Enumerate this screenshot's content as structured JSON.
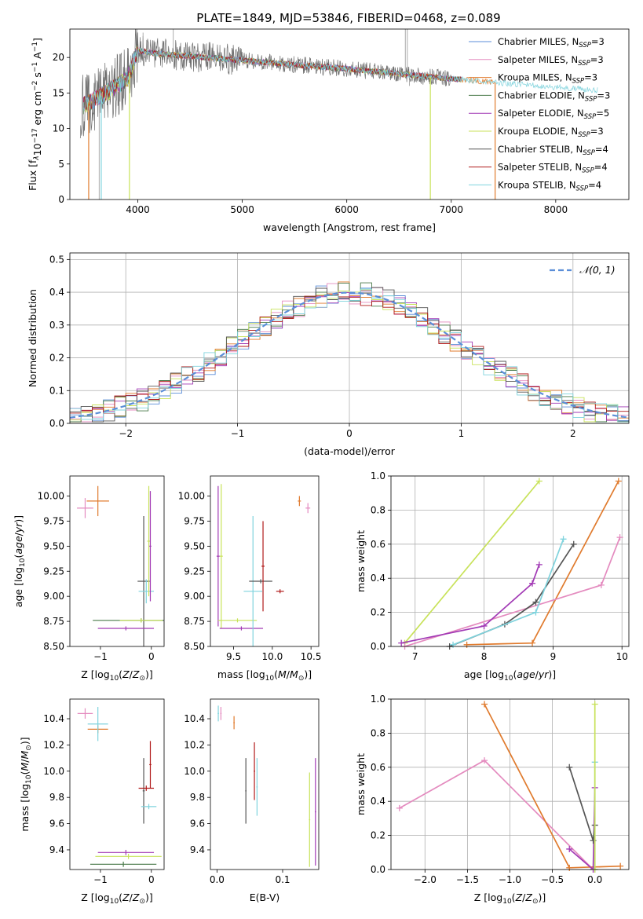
{
  "figure_title": "PLATE=1849, MJD=53846, FIBERID=0468, z=0.089",
  "chart_data": [
    {
      "id": "spectrum",
      "type": "line",
      "xlabel": "wavelength [Angstrom, rest frame]",
      "ylabel_parts": {
        "a": "Flux [f",
        "b": "λ",
        "c": "10",
        "d": "−17",
        "e": " erg cm",
        "f": "−2",
        "g": " s",
        "h": "−1",
        "i": " A",
        "j": "−1",
        "k": "]"
      },
      "xlim": [
        3350,
        8700
      ],
      "ylim": [
        0,
        24
      ],
      "xticks": [
        4000,
        5000,
        6000,
        7000,
        8000
      ],
      "yticks": [
        0,
        5,
        10,
        15,
        20
      ],
      "continuum": [
        [
          3450,
          13
        ],
        [
          3700,
          15
        ],
        [
          3900,
          17
        ],
        [
          4000,
          21
        ],
        [
          4200,
          20.5
        ],
        [
          4500,
          20.2
        ],
        [
          5000,
          19.6
        ],
        [
          5500,
          19
        ],
        [
          6000,
          18.4
        ],
        [
          6500,
          17.7
        ],
        [
          7000,
          17
        ],
        [
          7500,
          16.4
        ],
        [
          8000,
          15.8
        ],
        [
          8400,
          15.4
        ]
      ],
      "data_gray_end": 7000,
      "legend": [
        {
          "label": "Chabrier MILES, N",
          "sub": "SSP",
          "val": "=3",
          "color": "#5b8ed8"
        },
        {
          "label": "Salpeter MILES, N",
          "sub": "SSP",
          "val": "=3",
          "color": "#e48bbf"
        },
        {
          "label": "Kroupa MILES, N",
          "sub": "SSP",
          "val": "=3",
          "color": "#e07b2e"
        },
        {
          "label": "Chabrier ELODIE, N",
          "sub": "SSP",
          "val": "=3",
          "color": "#4a7a4a"
        },
        {
          "label": "Salpeter ELODIE, N",
          "sub": "SSP",
          "val": "=5",
          "color": "#a23ab5"
        },
        {
          "label": "Kroupa ELODIE, N",
          "sub": "SSP",
          "val": "=3",
          "color": "#c8e25a"
        },
        {
          "label": "Chabrier STELIB, N",
          "sub": "SSP",
          "val": "=4",
          "color": "#555555"
        },
        {
          "label": "Salpeter STELIB, N",
          "sub": "SSP",
          "val": "=4",
          "color": "#b11a1a"
        },
        {
          "label": "Kroupa STELIB, N",
          "sub": "SSP",
          "val": "=4",
          "color": "#7fd3dd"
        }
      ]
    },
    {
      "id": "residuals",
      "type": "line",
      "xlabel": "(data-model)/error",
      "ylabel": "Normed distribution",
      "xlim": [
        -2.5,
        2.5
      ],
      "ylim": [
        0,
        0.52
      ],
      "xticks": [
        -2,
        -1,
        0,
        1,
        2
      ],
      "xtick_labels": [
        "−2",
        "−1",
        "0",
        "1",
        "2"
      ],
      "yticks": [
        0.0,
        0.1,
        0.2,
        0.3,
        0.4,
        0.5
      ],
      "ytick_labels": [
        "0.0",
        "0.1",
        "0.2",
        "0.3",
        "0.4",
        "0.5"
      ],
      "bin_width": 0.1,
      "legend": {
        "label": "𝒩(0, 1)",
        "color": "#5b8ed8"
      }
    },
    {
      "id": "age-vs-Z",
      "type": "scatter",
      "xlabel": "Z [log10(Z/Z⊙)]",
      "ylabel": "age  [log10(age/yr)]",
      "xlim": [
        -1.6,
        0.25
      ],
      "ylim": [
        8.5,
        10.2
      ],
      "xticks": [
        -1,
        0
      ],
      "xtick_labels": [
        "−1",
        "0"
      ],
      "yticks": [
        8.5,
        8.75,
        9.0,
        9.25,
        9.5,
        9.75,
        10.0
      ],
      "ytick_labels": [
        "8.50",
        "8.75",
        "9.00",
        "9.25",
        "9.50",
        "9.75",
        "10.00"
      ],
      "errorbars": [
        {
          "x": -1.3,
          "y": 9.88,
          "xerr": 0.16,
          "yerr": 0.1,
          "color": "#e48bbf"
        },
        {
          "x": -1.05,
          "y": 9.95,
          "xerr": 0.22,
          "yerr": 0.15,
          "color": "#e07b2e"
        },
        {
          "x": -0.15,
          "y": 9.15,
          "xerr": 0.12,
          "yerr": 0.65,
          "color": "#555555"
        },
        {
          "x": -0.1,
          "y": 9.05,
          "xerr": 0.15,
          "yerr": 0.12,
          "color": "#7fd3dd"
        },
        {
          "x": -0.05,
          "y": 9.55,
          "xerr": 0.03,
          "yerr": 0.55,
          "color": "#c8e25a"
        },
        {
          "x": -0.2,
          "y": 8.76,
          "xerr": 0.95,
          "yerr": 0.02,
          "color": "#4a7a4a"
        },
        {
          "x": -0.2,
          "y": 8.76,
          "xerr": 0.42,
          "yerr": 0.02,
          "color": "#c8e25a"
        },
        {
          "x": -0.5,
          "y": 8.68,
          "xerr": 0.55,
          "yerr": 0.02,
          "color": "#a23ab5"
        },
        {
          "x": -0.02,
          "y": 9.5,
          "xerr": 0.02,
          "yerr": 0.55,
          "color": "#a23ab5"
        }
      ]
    },
    {
      "id": "age-vs-mass",
      "type": "scatter",
      "xlabel": "mass [log10(M/M⊙)]",
      "xlim": [
        9.2,
        10.6
      ],
      "ylim": [
        8.5,
        10.2
      ],
      "xticks": [
        9.5,
        10.0,
        10.5
      ],
      "xtick_labels": [
        "9.5",
        "10.0",
        "10.5"
      ],
      "yticks": [
        8.5,
        8.75,
        9.0,
        9.25,
        9.5,
        9.75,
        10.0
      ],
      "ytick_labels": [
        "8.50",
        "8.75",
        "9.00",
        "9.25",
        "9.50",
        "9.75",
        "10.00"
      ],
      "errorbars": [
        {
          "x": 9.3,
          "y": 9.4,
          "xerr": 0.02,
          "yerr": 0.7,
          "color": "#a23ab5"
        },
        {
          "x": 9.34,
          "y": 9.4,
          "xerr": 0.02,
          "yerr": 0.72,
          "color": "#c8e25a"
        },
        {
          "x": 9.55,
          "y": 8.76,
          "xerr": 0.25,
          "yerr": 0.02,
          "color": "#c8e25a"
        },
        {
          "x": 9.6,
          "y": 8.68,
          "xerr": 0.28,
          "yerr": 0.02,
          "color": "#a23ab5"
        },
        {
          "x": 9.75,
          "y": 9.05,
          "xerr": 0.12,
          "yerr": 0.75,
          "color": "#7fd3dd"
        },
        {
          "x": 9.85,
          "y": 9.15,
          "xerr": 0.15,
          "yerr": 0.02,
          "color": "#555555"
        },
        {
          "x": 9.88,
          "y": 9.3,
          "xerr": 0.02,
          "yerr": 0.45,
          "color": "#b11a1a"
        },
        {
          "x": 10.1,
          "y": 9.05,
          "xerr": 0.05,
          "yerr": 0.02,
          "color": "#b11a1a"
        },
        {
          "x": 10.35,
          "y": 9.95,
          "xerr": 0.02,
          "yerr": 0.05,
          "color": "#e07b2e"
        },
        {
          "x": 10.46,
          "y": 9.88,
          "xerr": 0.03,
          "yerr": 0.05,
          "color": "#e48bbf"
        }
      ]
    },
    {
      "id": "weight-vs-age",
      "type": "line",
      "xlabel": "age  [log10(age/yr)]",
      "ylabel": "mass weight",
      "xlim": [
        6.65,
        10.1
      ],
      "ylim": [
        0,
        1.0
      ],
      "xticks": [
        7,
        8,
        9,
        10
      ],
      "xtick_labels": [
        "7",
        "8",
        "9",
        "10"
      ],
      "yticks": [
        0.0,
        0.2,
        0.4,
        0.6,
        0.8,
        1.0
      ],
      "ytick_labels": [
        "0.0",
        "0.2",
        "0.4",
        "0.6",
        "0.8",
        "1.0"
      ],
      "series": [
        {
          "color": "#c8e25a",
          "x": [
            6.85,
            8.8
          ],
          "y": [
            0.02,
            0.97
          ]
        },
        {
          "color": "#e07b2e",
          "x": [
            7.75,
            8.7,
            9.95
          ],
          "y": [
            0.01,
            0.02,
            0.97
          ]
        },
        {
          "color": "#e48bbf",
          "x": [
            6.85,
            9.7,
            9.97
          ],
          "y": [
            0.0,
            0.36,
            0.64
          ]
        },
        {
          "color": "#a23ab5",
          "x": [
            6.8,
            8.0,
            8.7,
            8.8
          ],
          "y": [
            0.02,
            0.12,
            0.37,
            0.48
          ]
        },
        {
          "color": "#555555",
          "x": [
            7.5,
            8.3,
            8.75,
            9.3
          ],
          "y": [
            0.0,
            0.13,
            0.26,
            0.6
          ]
        },
        {
          "color": "#7fd3dd",
          "x": [
            7.55,
            8.75,
            9.15
          ],
          "y": [
            0.01,
            0.2,
            0.63
          ]
        }
      ]
    },
    {
      "id": "mass-vs-Z",
      "type": "scatter",
      "xlabel": "Z [log10(Z/Z⊙)]",
      "ylabel": "mass [log10(M/M⊙)]",
      "xlim": [
        -1.6,
        0.25
      ],
      "ylim": [
        9.25,
        10.55
      ],
      "xticks": [
        -1,
        0
      ],
      "xtick_labels": [
        "−1",
        "0"
      ],
      "yticks": [
        9.4,
        9.6,
        9.8,
        10.0,
        10.2,
        10.4
      ],
      "ytick_labels": [
        "9.4",
        "9.6",
        "9.8",
        "10.0",
        "10.2",
        "10.4"
      ],
      "errorbars": [
        {
          "x": -1.3,
          "y": 10.44,
          "xerr": 0.15,
          "yerr": 0.04,
          "color": "#e48bbf"
        },
        {
          "x": -1.05,
          "y": 10.32,
          "xerr": 0.2,
          "yerr": 0.03,
          "color": "#e07b2e"
        },
        {
          "x": -1.05,
          "y": 10.36,
          "xerr": 0.2,
          "yerr": 0.13,
          "color": "#7fd3dd"
        },
        {
          "x": -0.15,
          "y": 9.85,
          "xerr": 0.02,
          "yerr": 0.25,
          "color": "#555555"
        },
        {
          "x": -0.1,
          "y": 9.87,
          "xerr": 0.15,
          "yerr": 0.02,
          "color": "#b11a1a"
        },
        {
          "x": -0.02,
          "y": 10.05,
          "xerr": 0.02,
          "yerr": 0.18,
          "color": "#b11a1a"
        },
        {
          "x": -0.05,
          "y": 9.73,
          "xerr": 0.15,
          "yerr": 0.02,
          "color": "#7fd3dd"
        },
        {
          "x": -0.5,
          "y": 9.38,
          "xerr": 0.55,
          "yerr": 0.02,
          "color": "#a23ab5"
        },
        {
          "x": -0.45,
          "y": 9.35,
          "xerr": 0.65,
          "yerr": 0.02,
          "color": "#c8e25a"
        },
        {
          "x": -0.55,
          "y": 9.29,
          "xerr": 0.65,
          "yerr": 0.02,
          "color": "#4a7a4a"
        }
      ]
    },
    {
      "id": "mass-vs-EBV",
      "type": "scatter",
      "xlabel": "E(B-V)",
      "xlim": [
        -0.01,
        0.155
      ],
      "ylim": [
        9.25,
        10.55
      ],
      "xticks": [
        0.0,
        0.1
      ],
      "xtick_labels": [
        "0.0",
        "0.1"
      ],
      "yticks": [
        9.4,
        9.6,
        9.8,
        10.0,
        10.2,
        10.4
      ],
      "ytick_labels": [
        "9.4",
        "9.6",
        "9.8",
        "10.0",
        "10.2",
        "10.4"
      ],
      "errorbars": [
        {
          "x": 0.002,
          "y": 10.44,
          "xerr": 0.001,
          "yerr": 0.06,
          "color": "#7fd3dd"
        },
        {
          "x": 0.006,
          "y": 10.44,
          "xerr": 0.001,
          "yerr": 0.05,
          "color": "#e48bbf"
        },
        {
          "x": 0.026,
          "y": 10.37,
          "xerr": 0.001,
          "yerr": 0.05,
          "color": "#e07b2e"
        },
        {
          "x": 0.044,
          "y": 9.85,
          "xerr": 0.001,
          "yerr": 0.25,
          "color": "#555555"
        },
        {
          "x": 0.057,
          "y": 10.0,
          "xerr": 0.001,
          "yerr": 0.22,
          "color": "#b11a1a"
        },
        {
          "x": 0.061,
          "y": 9.88,
          "xerr": 0.001,
          "yerr": 0.22,
          "color": "#7fd3dd"
        },
        {
          "x": 0.141,
          "y": 9.63,
          "xerr": 0.001,
          "yerr": 0.36,
          "color": "#c8e25a"
        },
        {
          "x": 0.15,
          "y": 9.69,
          "xerr": 0.001,
          "yerr": 0.41,
          "color": "#a23ab5"
        }
      ]
    },
    {
      "id": "weight-vs-Z",
      "type": "line",
      "xlabel": "Z [log10(Z/Z⊙)]",
      "ylabel": "mass weight",
      "xlim": [
        -2.4,
        0.4
      ],
      "ylim": [
        0,
        1.0
      ],
      "xticks": [
        -2.0,
        -1.5,
        -1.0,
        -0.5,
        0.0
      ],
      "xtick_labels": [
        "−2.0",
        "−1.5",
        "−1.0",
        "−0.5",
        "0.0"
      ],
      "yticks": [
        0.0,
        0.2,
        0.4,
        0.6,
        0.8,
        1.0
      ],
      "ytick_labels": [
        "0.0",
        "0.2",
        "0.4",
        "0.6",
        "0.8",
        "1.0"
      ],
      "series": [
        {
          "color": "#e48bbf",
          "x": [
            -2.3,
            -1.3,
            -0.02
          ],
          "y": [
            0.36,
            0.64,
            0.0
          ]
        },
        {
          "color": "#e07b2e",
          "x": [
            -1.3,
            -0.3,
            0.3
          ],
          "y": [
            0.97,
            0.01,
            0.02
          ]
        },
        {
          "color": "#a23ab5",
          "x": [
            -0.3,
            -0.02,
            0.0
          ],
          "y": [
            0.12,
            0.0,
            0.48
          ]
        },
        {
          "color": "#555555",
          "x": [
            -0.3,
            -0.02,
            0.0
          ],
          "y": [
            0.6,
            0.17,
            0.26
          ]
        },
        {
          "color": "#7fd3dd",
          "x": [
            0.0,
            0.0
          ],
          "y": [
            0.0,
            0.63
          ]
        },
        {
          "color": "#c8e25a",
          "x": [
            0.0,
            0.0
          ],
          "y": [
            0.0,
            0.97
          ]
        }
      ]
    }
  ]
}
